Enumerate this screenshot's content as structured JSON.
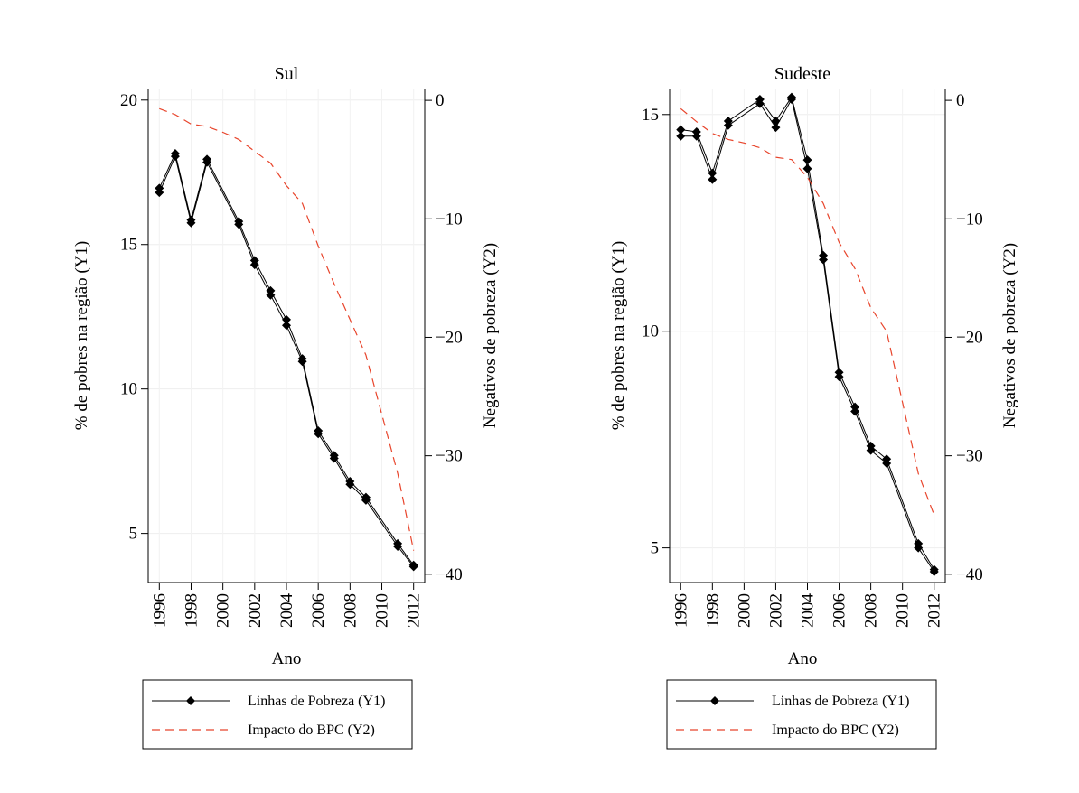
{
  "chart_data": [
    {
      "type": "line",
      "title": "Sul",
      "xlabel": "Ano",
      "ylabel": "% de pobres na região (Y1)",
      "y2label": "Negativos de pobreza (Y2)",
      "x": [
        1996,
        1997,
        1998,
        1999,
        2001,
        2002,
        2003,
        2004,
        2005,
        2006,
        2007,
        2008,
        2009,
        2011,
        2012
      ],
      "xticks": [
        "1996",
        "1998",
        "2000",
        "2002",
        "2004",
        "2006",
        "2008",
        "2010",
        "2012"
      ],
      "xlim": [
        1995.3,
        2012.7
      ],
      "ylim": [
        3.3,
        20.4
      ],
      "yticks": [
        "5",
        "10",
        "15",
        "20"
      ],
      "y2lim": [
        -40.7,
        1.0
      ],
      "y2ticks": [
        "0",
        "−10",
        "−20",
        "−30",
        "−40"
      ],
      "legend_position": "bottom",
      "series": [
        {
          "name": "Linhas de Pobreza (Y1)",
          "axis": "y1",
          "style": "solid-diamond",
          "color": "#000000",
          "values": [
            16.95,
            18.15,
            15.85,
            17.95,
            15.8,
            14.45,
            13.4,
            12.4,
            11.05,
            8.55,
            7.7,
            6.8,
            6.25,
            4.65,
            3.9
          ]
        },
        {
          "name": "Linhas de Pobreza (Y1)",
          "axis": "y1",
          "style": "solid-diamond",
          "color": "#000000",
          "values": [
            16.8,
            18.05,
            15.75,
            17.85,
            15.7,
            14.3,
            13.25,
            12.2,
            10.95,
            8.45,
            7.6,
            6.7,
            6.15,
            4.55,
            3.85
          ]
        },
        {
          "name": "Impacto do BPC (Y2)",
          "axis": "y2",
          "style": "dashed",
          "color": "#e8452c",
          "x": [
            1996,
            1997,
            1998,
            1999,
            2000,
            2001,
            2002,
            2003,
            2004,
            2005,
            2006,
            2007,
            2008,
            2009,
            2010,
            2011,
            2012
          ],
          "values": [
            -0.7,
            -1.2,
            -2.0,
            -2.2,
            -2.7,
            -3.3,
            -4.3,
            -5.3,
            -7.2,
            -8.7,
            -12.3,
            -15.5,
            -18.5,
            -21.5,
            -26.5,
            -31.5,
            -38.0
          ]
        }
      ]
    },
    {
      "type": "line",
      "title": "Sudeste",
      "xlabel": "Ano",
      "ylabel": "% de pobres na região (Y1)",
      "y2label": "Negativos de pobreza (Y2)",
      "x": [
        1996,
        1997,
        1998,
        1999,
        2001,
        2002,
        2003,
        2004,
        2005,
        2006,
        2007,
        2008,
        2009,
        2011,
        2012
      ],
      "xticks": [
        "1996",
        "1998",
        "2000",
        "2002",
        "2004",
        "2006",
        "2008",
        "2010",
        "2012"
      ],
      "xlim": [
        1995.3,
        2012.7
      ],
      "ylim": [
        4.2,
        15.6
      ],
      "yticks": [
        "5",
        "10",
        "15"
      ],
      "y2lim": [
        -40.7,
        1.0
      ],
      "y2ticks": [
        "0",
        "−10",
        "−20",
        "−30",
        "−40"
      ],
      "legend_position": "bottom",
      "series": [
        {
          "name": "Linhas de Pobreza (Y1)",
          "axis": "y1",
          "style": "solid-diamond",
          "color": "#000000",
          "values": [
            14.65,
            14.6,
            13.65,
            14.85,
            15.35,
            14.85,
            15.4,
            13.95,
            11.75,
            9.05,
            8.25,
            7.35,
            7.05,
            5.1,
            4.5
          ]
        },
        {
          "name": "Linhas de Pobreza (Y1)",
          "axis": "y1",
          "style": "solid-diamond",
          "color": "#000000",
          "values": [
            14.5,
            14.5,
            13.5,
            14.75,
            15.25,
            14.7,
            15.35,
            13.75,
            11.65,
            8.95,
            8.15,
            7.25,
            6.95,
            5.0,
            4.45
          ]
        },
        {
          "name": "Impacto do BPC (Y2)",
          "axis": "y2",
          "style": "dashed",
          "color": "#e8452c",
          "x": [
            1996,
            1997,
            1998,
            1999,
            2000,
            2001,
            2002,
            2003,
            2004,
            2005,
            2006,
            2007,
            2008,
            2009,
            2010,
            2011,
            2012
          ],
          "values": [
            -0.7,
            -1.8,
            -2.8,
            -3.3,
            -3.6,
            -4.0,
            -4.8,
            -5.0,
            -6.5,
            -8.7,
            -12.0,
            -14.2,
            -17.5,
            -19.5,
            -25.5,
            -31.5,
            -35.0
          ]
        }
      ]
    }
  ]
}
